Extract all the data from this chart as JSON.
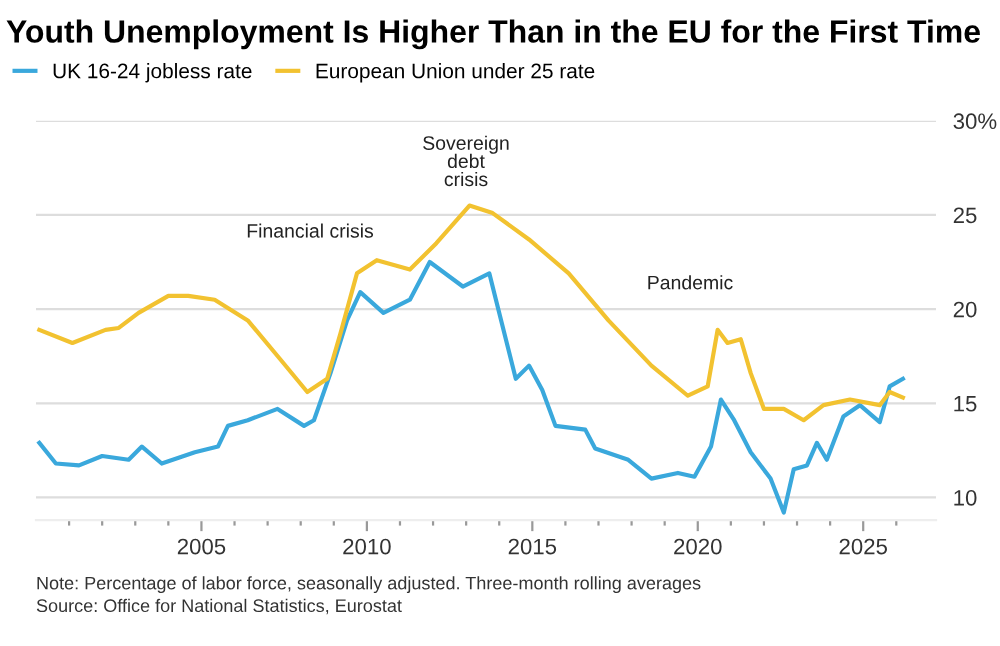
{
  "chart_data": {
    "type": "line",
    "title": "Youth Unemployment Is Higher Than in the EU for the First Time",
    "series": [
      {
        "name": "UK 16-24 jobless rate",
        "color": "#3aa8dc",
        "x": [
          2000.1,
          2000.6,
          2001.3,
          2002.0,
          2002.8,
          2003.2,
          2003.8,
          2004.8,
          2005.5,
          2005.8,
          2006.4,
          2007.3,
          2008.1,
          2008.4,
          2008.9,
          2009.4,
          2009.8,
          2010.5,
          2011.3,
          2011.9,
          2012.9,
          2013.7,
          2013.9,
          2014.5,
          2014.9,
          2015.3,
          2015.7,
          2016.6,
          2016.9,
          2017.9,
          2018.6,
          2019.4,
          2019.9,
          2020.4,
          2020.7,
          2021.1,
          2021.6,
          2022.2,
          2022.6,
          2022.9,
          2023.3,
          2023.6,
          2023.9,
          2024.4,
          2024.9,
          2025.5,
          2025.8,
          2026.2
        ],
        "values": [
          12.9,
          11.8,
          11.7,
          12.2,
          12.0,
          12.7,
          11.8,
          12.4,
          12.7,
          13.8,
          14.1,
          14.7,
          13.8,
          14.1,
          16.6,
          19.4,
          20.9,
          19.8,
          20.5,
          22.5,
          21.2,
          21.9,
          20.5,
          16.3,
          17.0,
          15.7,
          13.8,
          13.6,
          12.6,
          12.0,
          11.0,
          11.3,
          11.1,
          12.7,
          15.2,
          14.1,
          12.4,
          11.0,
          9.2,
          11.5,
          11.7,
          12.9,
          12.0,
          14.3,
          14.9,
          14.0,
          15.9,
          16.3
        ]
      },
      {
        "name": "European Union under 25 rate",
        "color": "#f2c230",
        "x": [
          2000.1,
          2001.1,
          2002.1,
          2002.5,
          2003.1,
          2004.0,
          2004.6,
          2005.4,
          2006.4,
          2007.4,
          2008.2,
          2008.8,
          2009.2,
          2009.7,
          2010.3,
          2011.3,
          2012.1,
          2013.1,
          2013.8,
          2014.9,
          2016.1,
          2017.3,
          2018.6,
          2019.7,
          2020.3,
          2020.6,
          2020.9,
          2021.3,
          2021.6,
          2022.0,
          2022.6,
          2023.2,
          2023.8,
          2024.6,
          2025.5,
          2025.8,
          2026.2
        ],
        "values": [
          18.9,
          18.2,
          18.9,
          19.0,
          19.8,
          20.7,
          20.7,
          20.5,
          19.4,
          17.3,
          15.6,
          16.3,
          18.7,
          21.9,
          22.6,
          22.1,
          23.5,
          25.5,
          25.1,
          23.7,
          21.9,
          19.4,
          17.0,
          15.4,
          15.9,
          18.9,
          18.2,
          18.4,
          16.6,
          14.7,
          14.7,
          14.1,
          14.9,
          15.2,
          14.9,
          15.6,
          15.3
        ]
      }
    ],
    "xlim": [
      2000,
      2027.2
    ],
    "xticks": [
      {
        "value": 2001,
        "label": null
      },
      {
        "value": 2002,
        "label": null
      },
      {
        "value": 2003,
        "label": null
      },
      {
        "value": 2004,
        "label": null
      },
      2005,
      {
        "value": 2006,
        "label": null
      },
      {
        "value": 2007,
        "label": null
      },
      {
        "value": 2008,
        "label": null
      },
      {
        "value": 2009,
        "label": null
      },
      2010,
      {
        "value": 2011,
        "label": null
      },
      {
        "value": 2012,
        "label": null
      },
      {
        "value": 2013,
        "label": null
      },
      {
        "value": 2014,
        "label": null
      },
      2015,
      {
        "value": 2016,
        "label": null
      },
      {
        "value": 2017,
        "label": null
      },
      {
        "value": 2018,
        "label": null
      },
      {
        "value": 2019,
        "label": null
      },
      2020,
      {
        "value": 2021,
        "label": null
      },
      {
        "value": 2022,
        "label": null
      },
      {
        "value": 2023,
        "label": null
      },
      {
        "value": 2024,
        "label": null
      },
      2025,
      {
        "value": 2026,
        "label": null
      }
    ],
    "ylim": [
      8.8,
      30
    ],
    "yticks": [
      10,
      15,
      20,
      25,
      {
        "value": 30,
        "label": "30%"
      }
    ],
    "grid": "y",
    "legend": "top left",
    "marker": "none",
    "line_style": "solid",
    "annotations": [
      "Financial crisis",
      "Sovereign\ndebt\ncrisis",
      "Pandemic",
      "Note: Percentage of labor force, seasonally adjusted. Three-month rolling averages",
      "Source: Office for National Statistics, Eurostat"
    ]
  }
}
